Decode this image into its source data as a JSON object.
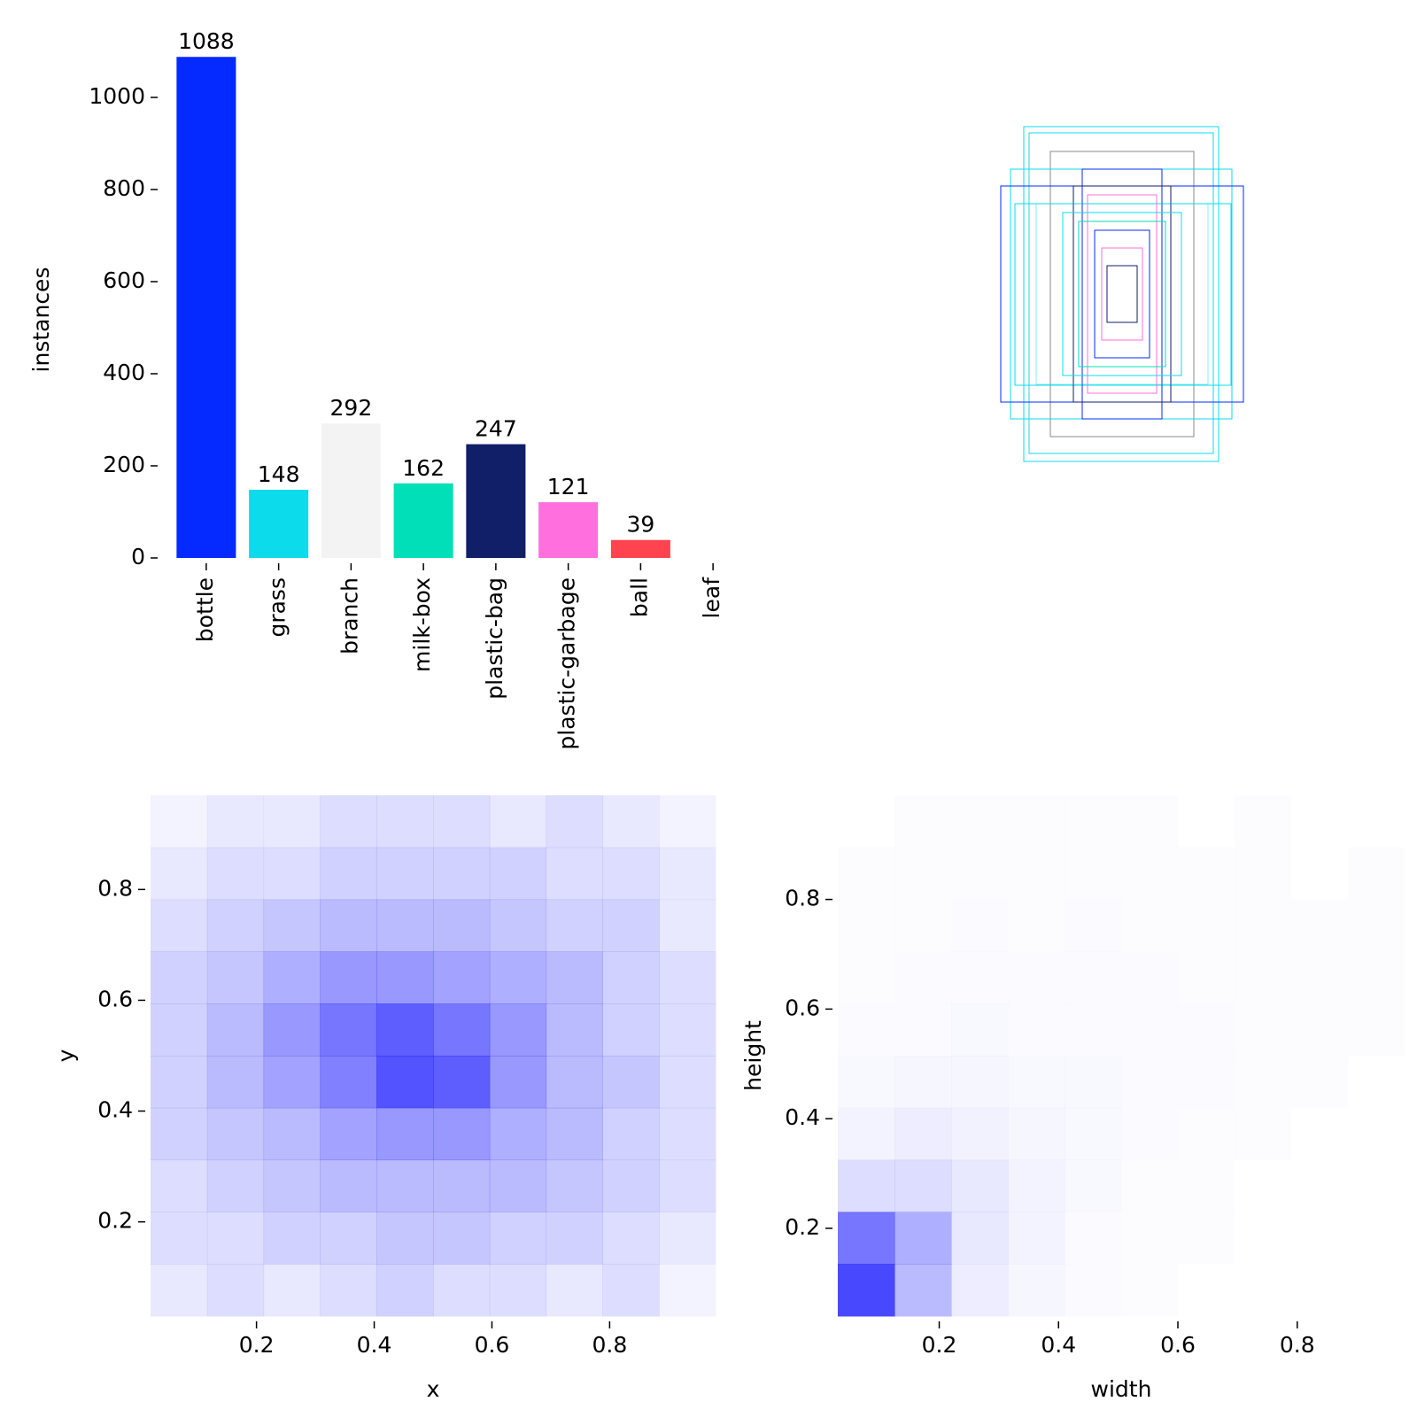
{
  "chart_data": [
    {
      "type": "bar",
      "ylabel": "instances",
      "categories": [
        "bottle",
        "grass",
        "branch",
        "milk-box",
        "plastic-bag",
        "plastic-garbage",
        "ball",
        "leaf"
      ],
      "values": [
        1088,
        148,
        292,
        162,
        247,
        121,
        39,
        0
      ],
      "value_labels": [
        "1088",
        "148",
        "292",
        "162",
        "247",
        "121",
        "39",
        null
      ],
      "colors": [
        "#042aff",
        "#0bdbeb",
        "#f3f3f3",
        "#00dfb7",
        "#111f68",
        "#ff6fdd",
        "#ff444f",
        "#cced00"
      ],
      "ylim": [
        0,
        1150
      ],
      "yticks": [
        0,
        200,
        400,
        600,
        800,
        1000
      ]
    },
    {
      "type": "hist2d",
      "xlabel": "x",
      "ylabel": "y",
      "color": "#1a1aff",
      "xlim": [
        0.02,
        0.98
      ],
      "ylim": [
        0.03,
        0.97
      ],
      "xticks": [
        0.2,
        0.4,
        0.6,
        0.8
      ],
      "yticks": [
        0.2,
        0.4,
        0.6,
        0.8
      ],
      "values": [
        [
          0.1,
          0.15,
          0.1,
          0.15,
          0.2,
          0.15,
          0.15,
          0.1,
          0.15,
          0.05
        ],
        [
          0.15,
          0.15,
          0.2,
          0.2,
          0.25,
          0.25,
          0.2,
          0.2,
          0.15,
          0.1
        ],
        [
          0.15,
          0.2,
          0.25,
          0.3,
          0.3,
          0.3,
          0.3,
          0.25,
          0.2,
          0.15
        ],
        [
          0.2,
          0.25,
          0.3,
          0.4,
          0.45,
          0.45,
          0.35,
          0.3,
          0.2,
          0.15
        ],
        [
          0.2,
          0.3,
          0.4,
          0.55,
          0.75,
          0.7,
          0.45,
          0.3,
          0.25,
          0.15
        ],
        [
          0.2,
          0.3,
          0.45,
          0.6,
          0.7,
          0.6,
          0.45,
          0.3,
          0.2,
          0.15
        ],
        [
          0.2,
          0.25,
          0.35,
          0.45,
          0.45,
          0.4,
          0.35,
          0.3,
          0.2,
          0.15
        ],
        [
          0.15,
          0.2,
          0.25,
          0.3,
          0.3,
          0.3,
          0.25,
          0.2,
          0.2,
          0.1
        ],
        [
          0.1,
          0.15,
          0.15,
          0.2,
          0.2,
          0.2,
          0.2,
          0.15,
          0.15,
          0.1
        ],
        [
          0.05,
          0.1,
          0.1,
          0.15,
          0.15,
          0.15,
          0.1,
          0.15,
          0.1,
          0.05
        ]
      ]
    },
    {
      "type": "hist2d",
      "xlabel": "width",
      "ylabel": "height",
      "color": "#1a1aff",
      "xlim": [
        0.03,
        0.98
      ],
      "ylim": [
        0.04,
        0.99
      ],
      "xticks": [
        0.2,
        0.4,
        0.6,
        0.8
      ],
      "yticks": [
        0.2,
        0.4,
        0.6,
        0.8
      ],
      "values": [
        [
          0.8,
          0.3,
          0.08,
          0.04,
          0.02,
          0.01,
          0,
          0,
          0,
          0
        ],
        [
          0.6,
          0.35,
          0.1,
          0.05,
          0.02,
          0.01,
          0.01,
          0,
          0,
          0
        ],
        [
          0.15,
          0.15,
          0.1,
          0.05,
          0.03,
          0.01,
          0.01,
          0,
          0,
          0
        ],
        [
          0.05,
          0.08,
          0.06,
          0.04,
          0.03,
          0.02,
          0.01,
          0.01,
          0,
          0
        ],
        [
          0.03,
          0.04,
          0.04,
          0.03,
          0.03,
          0.02,
          0.02,
          0.01,
          0.01,
          0
        ],
        [
          0.02,
          0.02,
          0.03,
          0.02,
          0.02,
          0.02,
          0.02,
          0.01,
          0.01,
          0.01
        ],
        [
          0.01,
          0.02,
          0.02,
          0.02,
          0.02,
          0.02,
          0.01,
          0.01,
          0.01,
          0.01
        ],
        [
          0.01,
          0.01,
          0.02,
          0.01,
          0.02,
          0.01,
          0.01,
          0.01,
          0.01,
          0.01
        ],
        [
          0.01,
          0.01,
          0.01,
          0.01,
          0.01,
          0.01,
          0.01,
          0.01,
          0,
          0.01
        ],
        [
          0,
          0.01,
          0.01,
          0.01,
          0.01,
          0.01,
          0,
          0.01,
          0,
          0
        ]
      ]
    }
  ]
}
